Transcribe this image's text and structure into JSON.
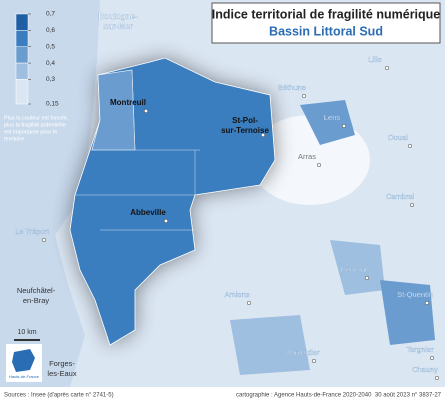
{
  "title": "Indice territorial de fragilité numérique",
  "subtitle": "Bassin Littoral Sud",
  "legend": {
    "ticks": [
      {
        "value": 0.7,
        "label": "0,7"
      },
      {
        "value": 0.6,
        "label": "0,6"
      },
      {
        "value": 0.5,
        "label": "0,5"
      },
      {
        "value": 0.4,
        "label": "0,4"
      },
      {
        "value": 0.3,
        "label": "0,3"
      },
      {
        "value": 0.15,
        "label": "0,15"
      }
    ],
    "colors": [
      "#1f5fa3",
      "#3a7ebf",
      "#6b9ccf",
      "#9fbfe0",
      "#dbe6f3"
    ],
    "note": [
      "Plus la couleur est foncée,",
      "plus la fragilité potentielle",
      "est importante pour le",
      "territoire"
    ]
  },
  "places": [
    {
      "lines": [
        "Boulogne-",
        "sur-Mer"
      ]
    },
    {
      "lines": [
        "Montreuil"
      ]
    },
    {
      "lines": [
        "St-Pol-",
        "sur-Ternoise"
      ]
    },
    {
      "lines": [
        "Abbeville"
      ]
    },
    {
      "lines": [
        "Lille"
      ]
    },
    {
      "lines": [
        "Béthune"
      ]
    },
    {
      "lines": [
        "Lens"
      ]
    },
    {
      "lines": [
        "Douai"
      ]
    },
    {
      "lines": [
        "Arras"
      ]
    },
    {
      "lines": [
        "Cambrai"
      ]
    },
    {
      "lines": [
        "Le Tréport"
      ]
    },
    {
      "lines": [
        "Péronne"
      ]
    },
    {
      "lines": [
        "St-Quentin"
      ]
    },
    {
      "lines": [
        "Amiens"
      ]
    },
    {
      "lines": [
        "Neufchâtel-",
        "en-Bray"
      ]
    },
    {
      "lines": [
        "Forges-",
        "les-Eaux"
      ]
    },
    {
      "lines": [
        "Montdidier"
      ]
    },
    {
      "lines": [
        "Tergnier"
      ]
    },
    {
      "lines": [
        "Chauny"
      ]
    }
  ],
  "scale": "10 km",
  "logo": "Hauts-de-France",
  "footer": {
    "source": "Sources : Insee (d'après carte n° 2741-5)",
    "credit": "cartographie : Agence Hauts-de-France 2020-2040",
    "date": "30 août 2023 n° 3837-27"
  }
}
